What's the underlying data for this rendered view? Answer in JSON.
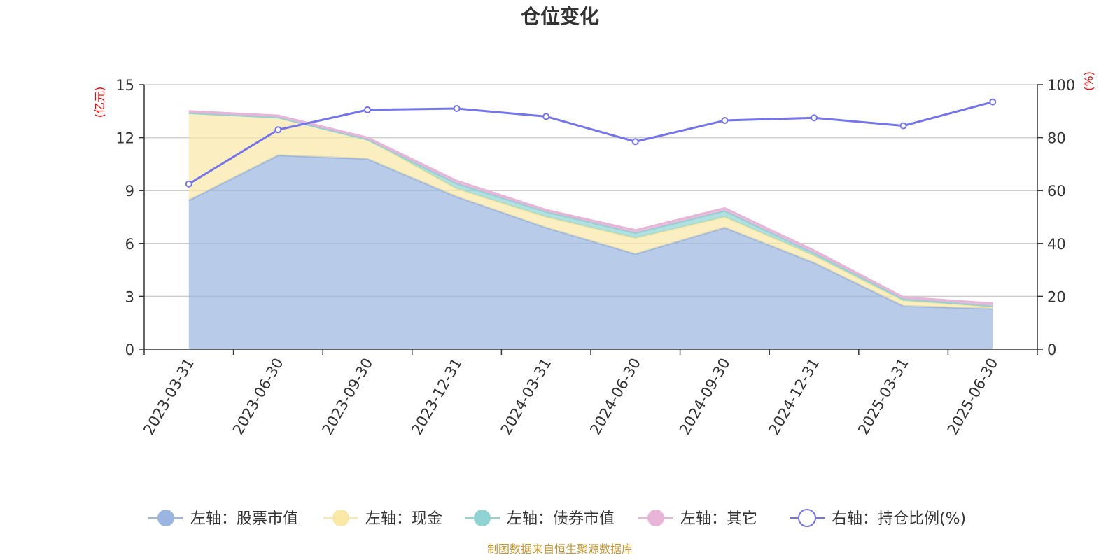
{
  "chart_data": {
    "type": "area",
    "title": "仓位变化",
    "left_unit": "(亿元)",
    "right_unit": "(%)",
    "categories": [
      "2023-03-31",
      "2023-06-30",
      "2023-09-30",
      "2023-12-31",
      "2024-03-31",
      "2024-06-30",
      "2024-09-30",
      "2024-12-31",
      "2025-03-31",
      "2025-06-30"
    ],
    "left_axis": {
      "min": 0,
      "max": 15,
      "ticks": [
        0,
        3,
        6,
        9,
        12,
        15
      ]
    },
    "right_axis": {
      "min": 0,
      "max": 100,
      "ticks": [
        0,
        20,
        40,
        60,
        80,
        100
      ]
    },
    "grid": true,
    "legend_position": "bottom",
    "series": [
      {
        "name": "左轴：股票市值",
        "axis": "left",
        "stacked": true,
        "color": "#9ab5e0",
        "values": [
          8.45,
          11.0,
          10.8,
          8.65,
          6.9,
          5.4,
          6.9,
          4.9,
          2.45,
          2.3
        ]
      },
      {
        "name": "左轴：现金",
        "axis": "left",
        "stacked": true,
        "color": "#f9e8a6",
        "values": [
          4.95,
          2.15,
          1.1,
          0.45,
          0.6,
          0.9,
          0.6,
          0.4,
          0.3,
          0.1
        ]
      },
      {
        "name": "左轴：债券市值",
        "axis": "left",
        "stacked": true,
        "color": "#8fd3d3",
        "values": [
          0,
          0,
          0,
          0.3,
          0.3,
          0.3,
          0.35,
          0.15,
          0.1,
          0.05
        ]
      },
      {
        "name": "左轴：其它",
        "axis": "left",
        "stacked": true,
        "color": "#e8b4d8",
        "values": [
          0.1,
          0.1,
          0.1,
          0.15,
          0.1,
          0.15,
          0.15,
          0.15,
          0.1,
          0.15
        ]
      },
      {
        "name": "右轴：持仓比例(%)",
        "axis": "right",
        "type": "line",
        "color": "#7474ee",
        "values": [
          62.5,
          83.0,
          90.5,
          91.0,
          88.0,
          78.5,
          86.5,
          87.5,
          84.5,
          93.5
        ]
      }
    ]
  },
  "colors": {
    "axis_unit": "#ff0000",
    "source": "#c8962e",
    "grid": "#cccccc",
    "axis": "#333333"
  },
  "source_text": "制图数据来自恒生聚源数据库"
}
